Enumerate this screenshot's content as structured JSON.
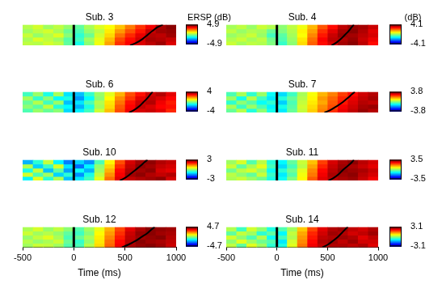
{
  "chart_data": [
    {
      "type": "heatmap",
      "title": "Sub. 3",
      "xlim": [
        -500,
        1000
      ],
      "ylim": [
        0,
        1
      ],
      "tick_labels": false,
      "x_bins": [
        -500,
        -400,
        -300,
        -200,
        -100,
        0,
        100,
        200,
        300,
        400,
        500,
        600,
        700,
        800,
        900,
        1000
      ],
      "y_bins": [
        0,
        0.2,
        0.4,
        0.6,
        0.8,
        1
      ],
      "cells": [
        [
          0.6,
          0.5,
          0.8,
          0.6,
          -0.3,
          -1.0,
          0.1,
          1.1,
          2.1,
          3.2,
          3.7,
          4.0,
          4.3,
          4.6,
          4.0
        ],
        [
          0.4,
          0.9,
          0.6,
          0.3,
          -0.4,
          -0.6,
          0.3,
          1.0,
          1.9,
          3.0,
          3.6,
          4.1,
          4.5,
          4.4,
          4.2
        ],
        [
          0.7,
          0.2,
          0.5,
          0.9,
          0.1,
          -0.8,
          -0.2,
          0.8,
          1.6,
          2.6,
          3.3,
          3.9,
          4.4,
          4.3,
          4.6
        ],
        [
          0.3,
          0.6,
          0.8,
          0.4,
          -0.2,
          -0.5,
          0.2,
          0.6,
          1.4,
          2.2,
          2.9,
          3.5,
          4.2,
          4.6,
          4.7
        ],
        [
          0.5,
          0.8,
          0.3,
          0.6,
          0.2,
          -0.3,
          0.4,
          0.9,
          1.2,
          1.8,
          2.5,
          3.2,
          3.8,
          4.5,
          4.8
        ]
      ],
      "vline": 0,
      "rt_curve": {
        "x": [
          550,
          610,
          670,
          720,
          770,
          820,
          870
        ],
        "y": [
          0,
          0.12,
          0.3,
          0.5,
          0.7,
          0.88,
          1
        ],
        "color": "#000000"
      },
      "colorbar": {
        "range": [
          -4.9,
          4.9
        ],
        "ticks": [
          -4.9,
          4.9
        ],
        "label": "ERSP (dB)"
      }
    },
    {
      "type": "heatmap",
      "title": "Sub. 4",
      "xlim": [
        -500,
        1000
      ],
      "ylim": [
        0,
        1
      ],
      "tick_labels": false,
      "x_bins": [
        -500,
        -400,
        -300,
        -200,
        -100,
        0,
        100,
        200,
        300,
        400,
        500,
        600,
        700,
        800,
        900,
        1000
      ],
      "y_bins": [
        0,
        0.2,
        0.4,
        0.6,
        0.8,
        1
      ],
      "cells": [
        [
          0.6,
          0.3,
          0.5,
          0.4,
          0.0,
          -0.6,
          0.1,
          1.3,
          2.3,
          3.0,
          3.4,
          3.8,
          4.0,
          3.6,
          3.0
        ],
        [
          0.4,
          0.6,
          0.3,
          0.5,
          -0.1,
          -0.4,
          0.2,
          1.2,
          2.2,
          3.1,
          3.6,
          3.7,
          3.9,
          3.5,
          3.2
        ],
        [
          0.2,
          0.4,
          0.6,
          0.2,
          -0.5,
          -0.3,
          0.3,
          1.0,
          2.0,
          2.9,
          3.5,
          3.9,
          3.8,
          3.6,
          3.4
        ],
        [
          0.5,
          0.2,
          0.4,
          0.3,
          -0.2,
          0.0,
          0.4,
          1.1,
          1.8,
          2.7,
          3.3,
          3.8,
          4.0,
          3.7,
          3.3
        ],
        [
          0.3,
          0.5,
          0.2,
          0.6,
          0.4,
          0.1,
          0.5,
          0.9,
          1.6,
          2.4,
          3.0,
          3.6,
          3.9,
          3.8,
          3.5
        ]
      ],
      "vline": 0,
      "rt_curve": {
        "x": [
          540,
          585,
          630,
          670,
          710,
          740,
          760
        ],
        "y": [
          0,
          0.12,
          0.3,
          0.5,
          0.7,
          0.88,
          1
        ],
        "color": "#000000"
      },
      "colorbar": {
        "range": [
          -4.1,
          4.1
        ],
        "ticks": [
          -4.1,
          4.1
        ],
        "label": "(dB)"
      }
    },
    {
      "type": "heatmap",
      "title": "Sub. 6",
      "xlim": [
        -500,
        1000
      ],
      "ylim": [
        0,
        1
      ],
      "tick_labels": false,
      "x_bins": [
        -500,
        -400,
        -300,
        -200,
        -100,
        0,
        100,
        200,
        300,
        400,
        500,
        600,
        700,
        800,
        900,
        1000
      ],
      "y_bins": [
        0,
        0.2,
        0.4,
        0.6,
        0.8,
        1
      ],
      "cells": [
        [
          -0.4,
          0.2,
          -0.2,
          0.1,
          -1.3,
          -1.1,
          -0.5,
          0.6,
          1.5,
          2.4,
          3.1,
          3.3,
          3.4,
          3.2,
          2.7
        ],
        [
          0.1,
          -0.3,
          0.5,
          -0.7,
          -1.0,
          -1.6,
          -0.8,
          0.3,
          1.3,
          2.3,
          3.0,
          3.5,
          3.3,
          3.0,
          2.9
        ],
        [
          -0.2,
          0.4,
          -0.5,
          0.2,
          -1.5,
          -1.2,
          -0.4,
          0.4,
          1.2,
          2.1,
          2.9,
          3.4,
          3.6,
          3.1,
          2.8
        ],
        [
          0.3,
          -0.6,
          0.1,
          -1.0,
          -0.8,
          -1.8,
          -1.0,
          0.1,
          1.0,
          1.9,
          2.6,
          3.2,
          3.5,
          3.3,
          3.0
        ],
        [
          -0.5,
          0.2,
          -0.8,
          0.3,
          -1.2,
          -1.5,
          -0.6,
          0.2,
          0.8,
          1.6,
          2.4,
          2.9,
          3.4,
          3.6,
          3.2
        ]
      ],
      "vline": 0,
      "rt_curve": {
        "x": [
          540,
          590,
          640,
          680,
          720,
          750,
          770
        ],
        "y": [
          0,
          0.12,
          0.3,
          0.5,
          0.7,
          0.88,
          1
        ],
        "color": "#000000"
      },
      "colorbar": {
        "range": [
          -4,
          4
        ],
        "ticks": [
          -4,
          4
        ]
      }
    },
    {
      "type": "heatmap",
      "title": "Sub. 7",
      "xlim": [
        -500,
        1000
      ],
      "ylim": [
        0,
        1
      ],
      "tick_labels": false,
      "x_bins": [
        -500,
        -400,
        -300,
        -200,
        -100,
        0,
        100,
        200,
        300,
        400,
        500,
        600,
        700,
        800,
        900,
        1000
      ],
      "y_bins": [
        0,
        0.2,
        0.4,
        0.6,
        0.8,
        1
      ],
      "cells": [
        [
          -0.2,
          0.4,
          -0.7,
          0.1,
          -0.8,
          -1.1,
          -0.2,
          0.5,
          1.3,
          1.9,
          2.5,
          3.0,
          3.3,
          3.6,
          3.4
        ],
        [
          0.3,
          -0.5,
          0.2,
          -0.4,
          -1.0,
          -0.8,
          -0.3,
          0.6,
          1.2,
          1.8,
          2.3,
          2.9,
          3.2,
          3.5,
          3.6
        ],
        [
          -0.6,
          0.1,
          -0.3,
          -0.9,
          -0.6,
          -1.3,
          -0.4,
          0.5,
          1.1,
          1.6,
          2.2,
          2.7,
          3.1,
          3.4,
          3.3
        ],
        [
          0.2,
          -0.8,
          0.4,
          -0.5,
          -1.1,
          -0.7,
          -0.2,
          0.4,
          1.0,
          1.7,
          2.1,
          2.6,
          3.0,
          3.3,
          3.5
        ],
        [
          -0.4,
          0.3,
          -0.6,
          0.2,
          -0.9,
          -1.2,
          -0.5,
          0.3,
          0.9,
          1.5,
          1.9,
          2.4,
          2.8,
          3.2,
          3.4
        ]
      ],
      "vline": 0,
      "rt_curve": {
        "x": [
          470,
          530,
          590,
          650,
          700,
          740,
          770
        ],
        "y": [
          0,
          0.12,
          0.3,
          0.5,
          0.7,
          0.88,
          1
        ],
        "color": "#000000"
      },
      "colorbar": {
        "range": [
          -3.8,
          3.8
        ],
        "ticks": [
          -3.8,
          3.8
        ]
      }
    },
    {
      "type": "heatmap",
      "title": "Sub. 10",
      "xlim": [
        -500,
        1000
      ],
      "ylim": [
        0,
        1
      ],
      "tick_labels": false,
      "x_bins": [
        -500,
        -400,
        -300,
        -200,
        -100,
        0,
        100,
        200,
        300,
        400,
        500,
        600,
        700,
        800,
        900,
        1000
      ],
      "y_bins": [
        0,
        0.2,
        0.4,
        0.6,
        0.8,
        1
      ],
      "cells": [
        [
          -0.8,
          0.6,
          -0.5,
          0.3,
          -1.1,
          -0.9,
          -0.4,
          0.6,
          1.6,
          2.4,
          2.6,
          2.7,
          2.8,
          2.9,
          2.5
        ],
        [
          0.5,
          -0.3,
          0.2,
          -1.0,
          -0.5,
          -1.4,
          -0.6,
          0.4,
          1.4,
          2.3,
          2.8,
          2.9,
          2.7,
          2.6,
          2.7
        ],
        [
          -0.6,
          0.4,
          -1.1,
          -0.2,
          -1.3,
          -0.7,
          -1.2,
          0.2,
          1.2,
          2.2,
          2.7,
          2.8,
          2.9,
          2.5,
          2.4
        ],
        [
          0.3,
          -1.0,
          -0.4,
          0.5,
          -0.9,
          -1.6,
          -0.8,
          0.1,
          1.0,
          2.0,
          2.6,
          2.9,
          2.8,
          2.6,
          2.5
        ],
        [
          -1.2,
          -0.5,
          0.4,
          -0.8,
          -1.5,
          -1.0,
          -1.4,
          -0.3,
          0.8,
          1.8,
          2.5,
          2.8,
          2.9,
          2.7,
          2.6
        ]
      ],
      "vline": 0,
      "rt_curve": {
        "x": [
          450,
          500,
          550,
          600,
          650,
          690,
          720
        ],
        "y": [
          0,
          0.12,
          0.3,
          0.5,
          0.7,
          0.88,
          1
        ],
        "color": "#000000"
      },
      "colorbar": {
        "range": [
          -3,
          3
        ],
        "ticks": [
          -3,
          3
        ]
      }
    },
    {
      "type": "heatmap",
      "title": "Sub. 11",
      "xlim": [
        -500,
        1000
      ],
      "ylim": [
        0,
        1
      ],
      "tick_labels": false,
      "x_bins": [
        -500,
        -400,
        -300,
        -200,
        -100,
        0,
        100,
        200,
        300,
        400,
        500,
        600,
        700,
        800,
        900,
        1000
      ],
      "y_bins": [
        0,
        0.2,
        0.4,
        0.6,
        0.8,
        1
      ],
      "cells": [
        [
          0.3,
          0.5,
          0.2,
          -0.1,
          -0.7,
          -0.8,
          0.0,
          0.9,
          2.0,
          2.8,
          3.1,
          3.2,
          3.3,
          3.0,
          2.7
        ],
        [
          0.4,
          0.1,
          -0.2,
          0.5,
          -0.5,
          -1.0,
          -0.3,
          0.8,
          1.8,
          2.7,
          3.2,
          3.3,
          3.4,
          3.1,
          2.9
        ],
        [
          -0.1,
          0.4,
          0.6,
          0.2,
          -0.8,
          -0.6,
          -0.1,
          0.7,
          1.7,
          2.6,
          3.1,
          3.4,
          3.3,
          3.2,
          3.0
        ],
        [
          0.5,
          -0.2,
          0.3,
          0.7,
          -0.4,
          -1.1,
          -0.4,
          0.4,
          1.5,
          2.4,
          3.0,
          3.3,
          3.2,
          3.0,
          2.8
        ],
        [
          0.2,
          0.6,
          -0.3,
          0.4,
          -0.6,
          -0.9,
          -0.2,
          0.5,
          1.3,
          2.2,
          2.9,
          3.2,
          3.4,
          3.1,
          2.9
        ]
      ],
      "vline": 0,
      "rt_curve": {
        "x": [
          510,
          560,
          610,
          650,
          700,
          740,
          760
        ],
        "y": [
          0,
          0.12,
          0.3,
          0.5,
          0.7,
          0.88,
          1
        ],
        "color": "#000000"
      },
      "colorbar": {
        "range": [
          -3.5,
          3.5
        ],
        "ticks": [
          -3.5,
          3.5
        ]
      }
    },
    {
      "type": "heatmap",
      "title": "Sub. 12",
      "xlim": [
        -500,
        1000
      ],
      "xticks": [
        -500,
        0,
        500,
        1000
      ],
      "xlabel": "Time (ms)",
      "ylim": [
        0,
        1
      ],
      "tick_labels": "x",
      "x_bins": [
        -500,
        -400,
        -300,
        -200,
        -100,
        0,
        100,
        200,
        300,
        400,
        500,
        600,
        700,
        800,
        900,
        1000
      ],
      "y_bins": [
        0,
        0.2,
        0.4,
        0.6,
        0.8,
        1
      ],
      "cells": [
        [
          0.3,
          0.7,
          0.6,
          0.3,
          -0.4,
          -0.5,
          0.5,
          1.5,
          2.6,
          3.6,
          4.3,
          4.5,
          4.6,
          4.4,
          4.0
        ],
        [
          0.5,
          0.2,
          0.4,
          0.7,
          -0.2,
          -0.7,
          0.2,
          1.4,
          2.5,
          3.5,
          4.2,
          4.6,
          4.4,
          4.3,
          4.1
        ],
        [
          0.2,
          0.6,
          0.9,
          0.4,
          -0.5,
          -0.2,
          0.4,
          1.3,
          2.3,
          3.3,
          4.1,
          4.4,
          4.5,
          4.6,
          4.2
        ],
        [
          0.7,
          0.3,
          0.5,
          0.2,
          -0.3,
          -0.6,
          0.1,
          1.2,
          2.1,
          3.1,
          4.0,
          4.5,
          4.6,
          4.4,
          4.3
        ],
        [
          0.4,
          0.8,
          0.2,
          0.6,
          0.1,
          -0.4,
          0.3,
          1.0,
          1.9,
          2.9,
          3.8,
          4.3,
          4.6,
          4.5,
          4.4
        ]
      ],
      "vline": 0,
      "rt_curve": {
        "x": [
          470,
          530,
          600,
          660,
          720,
          760,
          790
        ],
        "y": [
          0,
          0.12,
          0.3,
          0.5,
          0.7,
          0.88,
          1
        ],
        "color": "#000000"
      },
      "colorbar": {
        "range": [
          -4.7,
          4.7
        ],
        "ticks": [
          -4.7,
          4.7
        ]
      }
    },
    {
      "type": "heatmap",
      "title": "Sub. 14",
      "xlim": [
        -500,
        1000
      ],
      "xticks": [
        -500,
        0,
        500,
        1000
      ],
      "xlabel": "Time (ms)",
      "ylim": [
        0,
        1
      ],
      "tick_labels": "x",
      "x_bins": [
        -500,
        -400,
        -300,
        -200,
        -100,
        0,
        100,
        200,
        300,
        400,
        500,
        600,
        700,
        800,
        900,
        1000
      ],
      "y_bins": [
        0,
        0.2,
        0.4,
        0.6,
        0.8,
        1
      ],
      "cells": [
        [
          0.4,
          -0.2,
          0.6,
          0.2,
          -0.5,
          -0.6,
          0.6,
          1.6,
          2.4,
          2.7,
          2.8,
          2.8,
          2.7,
          2.8,
          2.5
        ],
        [
          0.1,
          0.6,
          0.2,
          -0.1,
          -0.3,
          -0.9,
          0.5,
          1.5,
          2.3,
          2.8,
          2.9,
          2.7,
          2.9,
          2.6,
          2.6
        ],
        [
          0.5,
          0.1,
          -0.3,
          0.3,
          -0.7,
          -0.4,
          0.3,
          1.4,
          2.2,
          2.7,
          2.8,
          2.9,
          2.8,
          2.5,
          2.7
        ],
        [
          -0.2,
          0.4,
          0.2,
          -0.5,
          -0.2,
          -0.8,
          0.4,
          1.3,
          2.1,
          2.6,
          2.9,
          2.8,
          2.6,
          2.7,
          2.9
        ],
        [
          0.3,
          -0.4,
          0.5,
          0.1,
          -0.6,
          -0.3,
          0.2,
          1.1,
          1.9,
          2.5,
          2.8,
          2.9,
          2.7,
          2.6,
          2.8
        ]
      ],
      "vline": 0,
      "rt_curve": {
        "x": [
          450,
          500,
          550,
          600,
          640,
          675,
          700
        ],
        "y": [
          0,
          0.12,
          0.3,
          0.5,
          0.7,
          0.88,
          1
        ],
        "color": "#000000"
      },
      "colorbar": {
        "range": [
          -3.1,
          3.1
        ],
        "ticks": [
          -3.1,
          3.1
        ]
      }
    }
  ]
}
